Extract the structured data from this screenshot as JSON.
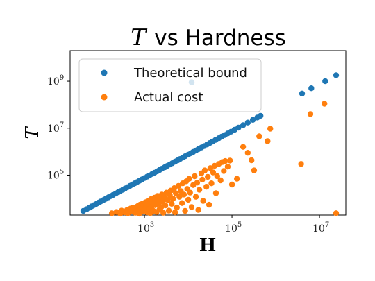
{
  "chart_data": {
    "type": "scatter",
    "title_var": "T",
    "title_rest": "vs Hardness",
    "xlabel": "H",
    "ylabel": "T",
    "xscale": "log",
    "yscale": "log",
    "xlim": [
      20,
      40000000
    ],
    "ylim": [
      2000,
      20000000000
    ],
    "xticks": [
      {
        "base": "10",
        "exp": "3",
        "value": 1000
      },
      {
        "base": "10",
        "exp": "5",
        "value": 100000
      },
      {
        "base": "10",
        "exp": "7",
        "value": 10000000
      }
    ],
    "yticks": [
      {
        "base": "10",
        "exp": "5",
        "value": 100000
      },
      {
        "base": "10",
        "exp": "7",
        "value": 10000000
      },
      {
        "base": "10",
        "exp": "9",
        "value": 1000000000
      }
    ],
    "grid": false,
    "legend_position": "top-left",
    "colors": {
      "theoretical": "#1f77b4",
      "actual": "#ff7f0e"
    },
    "series": [
      {
        "name": "Theoretical bound",
        "color": "#1f77b4",
        "points": [
          [
            40,
            3000
          ],
          [
            48,
            3600
          ],
          [
            55,
            4100
          ],
          [
            62,
            4700
          ],
          [
            70,
            5300
          ],
          [
            80,
            6000
          ],
          [
            90,
            6800
          ],
          [
            100,
            7600
          ],
          [
            115,
            8700
          ],
          [
            130,
            9800
          ],
          [
            150,
            11300
          ],
          [
            170,
            12800
          ],
          [
            190,
            14300
          ],
          [
            220,
            16500
          ],
          [
            250,
            18800
          ],
          [
            280,
            21000
          ],
          [
            320,
            24000
          ],
          [
            360,
            27000
          ],
          [
            410,
            30800
          ],
          [
            470,
            35300
          ],
          [
            530,
            39800
          ],
          [
            600,
            45000
          ],
          [
            680,
            51000
          ],
          [
            770,
            57800
          ],
          [
            880,
            66000
          ],
          [
            1000,
            75000
          ],
          [
            1150,
            86300
          ],
          [
            1300,
            97500
          ],
          [
            1500,
            112500
          ],
          [
            1700,
            127500
          ],
          [
            1950,
            146000
          ],
          [
            2200,
            165000
          ],
          [
            2500,
            187500
          ],
          [
            2900,
            217500
          ],
          [
            3300,
            247500
          ],
          [
            3800,
            285000
          ],
          [
            4300,
            322500
          ],
          [
            5000,
            375000
          ],
          [
            5700,
            427500
          ],
          [
            6500,
            487500
          ],
          [
            7500,
            562500
          ],
          [
            8500,
            637500
          ],
          [
            10000,
            750000
          ],
          [
            11500,
            862500
          ],
          [
            13000,
            975000
          ],
          [
            15000,
            1125000
          ],
          [
            17000,
            1275000
          ],
          [
            20000,
            1500000
          ],
          [
            23000,
            1725000
          ],
          [
            27000,
            2025000
          ],
          [
            31000,
            2325000
          ],
          [
            36000,
            2700000
          ],
          [
            42000,
            3150000
          ],
          [
            50000,
            3750000
          ],
          [
            58000,
            4350000
          ],
          [
            68000,
            5100000
          ],
          [
            80000,
            6000000
          ],
          [
            95000,
            7100000
          ],
          [
            115000,
            8600000
          ],
          [
            140000,
            10500000
          ],
          [
            180000,
            13500000
          ],
          [
            230000,
            17300000
          ],
          [
            300000,
            22500000
          ],
          [
            380000,
            28500000
          ],
          [
            450000,
            33750000
          ],
          [
            4000000,
            300000000
          ],
          [
            6500000,
            500000000
          ],
          [
            12000,
            900000000
          ],
          [
            13500000,
            1000000000
          ],
          [
            24000000,
            1800000000
          ]
        ]
      },
      {
        "name": "Actual cost",
        "color": "#ff7f0e",
        "points": [
          [
            180,
            2400
          ],
          [
            230,
            2700
          ],
          [
            280,
            2300
          ],
          [
            300,
            3100
          ],
          [
            350,
            2600
          ],
          [
            400,
            3300
          ],
          [
            420,
            2400
          ],
          [
            480,
            3800
          ],
          [
            500,
            2900
          ],
          [
            550,
            4200
          ],
          [
            600,
            3500
          ],
          [
            620,
            2500
          ],
          [
            700,
            4800
          ],
          [
            730,
            3200
          ],
          [
            760,
            2300
          ],
          [
            800,
            5600
          ],
          [
            830,
            4000
          ],
          [
            880,
            2800
          ],
          [
            900,
            6200
          ],
          [
            950,
            4600
          ],
          [
            1000,
            3300
          ],
          [
            1050,
            7000
          ],
          [
            1100,
            5200
          ],
          [
            1150,
            2600
          ],
          [
            1200,
            8000
          ],
          [
            1250,
            3800
          ],
          [
            1300,
            6000
          ],
          [
            1350,
            2400
          ],
          [
            1400,
            9500
          ],
          [
            1450,
            4500
          ],
          [
            1500,
            7200
          ],
          [
            1600,
            3000
          ],
          [
            1700,
            11000
          ],
          [
            1750,
            5300
          ],
          [
            1800,
            8500
          ],
          [
            1900,
            2700
          ],
          [
            2000,
            13000
          ],
          [
            2100,
            6300
          ],
          [
            2200,
            3500
          ],
          [
            2300,
            10000
          ],
          [
            2400,
            4300
          ],
          [
            2500,
            15000
          ],
          [
            2600,
            7500
          ],
          [
            2700,
            2500
          ],
          [
            2800,
            12000
          ],
          [
            3000,
            5200
          ],
          [
            3200,
            18000
          ],
          [
            3400,
            8800
          ],
          [
            3600,
            3100
          ],
          [
            3800,
            14000
          ],
          [
            4000,
            22000
          ],
          [
            4200,
            6000
          ],
          [
            4500,
            10000
          ],
          [
            4800,
            28000
          ],
          [
            5000,
            2600
          ],
          [
            5200,
            17000
          ],
          [
            5500,
            4200
          ],
          [
            6000,
            35000
          ],
          [
            6300,
            12000
          ],
          [
            6800,
            21000
          ],
          [
            7200,
            6500
          ],
          [
            7500,
            45000
          ],
          [
            8000,
            15000
          ],
          [
            8500,
            3000
          ],
          [
            9000,
            55000
          ],
          [
            9500,
            26000
          ],
          [
            10000,
            9000
          ],
          [
            10500,
            70000
          ],
          [
            11000,
            18000
          ],
          [
            12000,
            4400
          ],
          [
            13000,
            38000
          ],
          [
            14000,
            90000
          ],
          [
            15000,
            12000
          ],
          [
            16000,
            48000
          ],
          [
            17000,
            3300
          ],
          [
            18000,
            24000
          ],
          [
            20000,
            120000
          ],
          [
            21000,
            65000
          ],
          [
            22000,
            8000
          ],
          [
            24000,
            160000
          ],
          [
            26000,
            32000
          ],
          [
            28000,
            85000
          ],
          [
            30000,
            5500
          ],
          [
            32000,
            200000
          ],
          [
            34000,
            45000
          ],
          [
            37000,
            130000
          ],
          [
            40000,
            250000
          ],
          [
            43000,
            17000
          ],
          [
            46000,
            90000
          ],
          [
            50000,
            300000
          ],
          [
            55000,
            60000
          ],
          [
            60000,
            360000
          ],
          [
            65000,
            150000
          ],
          [
            70000,
            400000
          ],
          [
            80000,
            230000
          ],
          [
            90000,
            420000
          ],
          [
            100000,
            40000
          ],
          [
            130000,
            70000
          ],
          [
            180000,
            1600000
          ],
          [
            230000,
            900000
          ],
          [
            280000,
            430000
          ],
          [
            320000,
            160000
          ],
          [
            420000,
            4500000
          ],
          [
            650000,
            2800000
          ],
          [
            750000,
            9500000
          ],
          [
            3800000,
            300000
          ],
          [
            6200000,
            40000000
          ],
          [
            13000000,
            110000000
          ],
          [
            24000000,
            2400
          ]
        ]
      }
    ]
  }
}
